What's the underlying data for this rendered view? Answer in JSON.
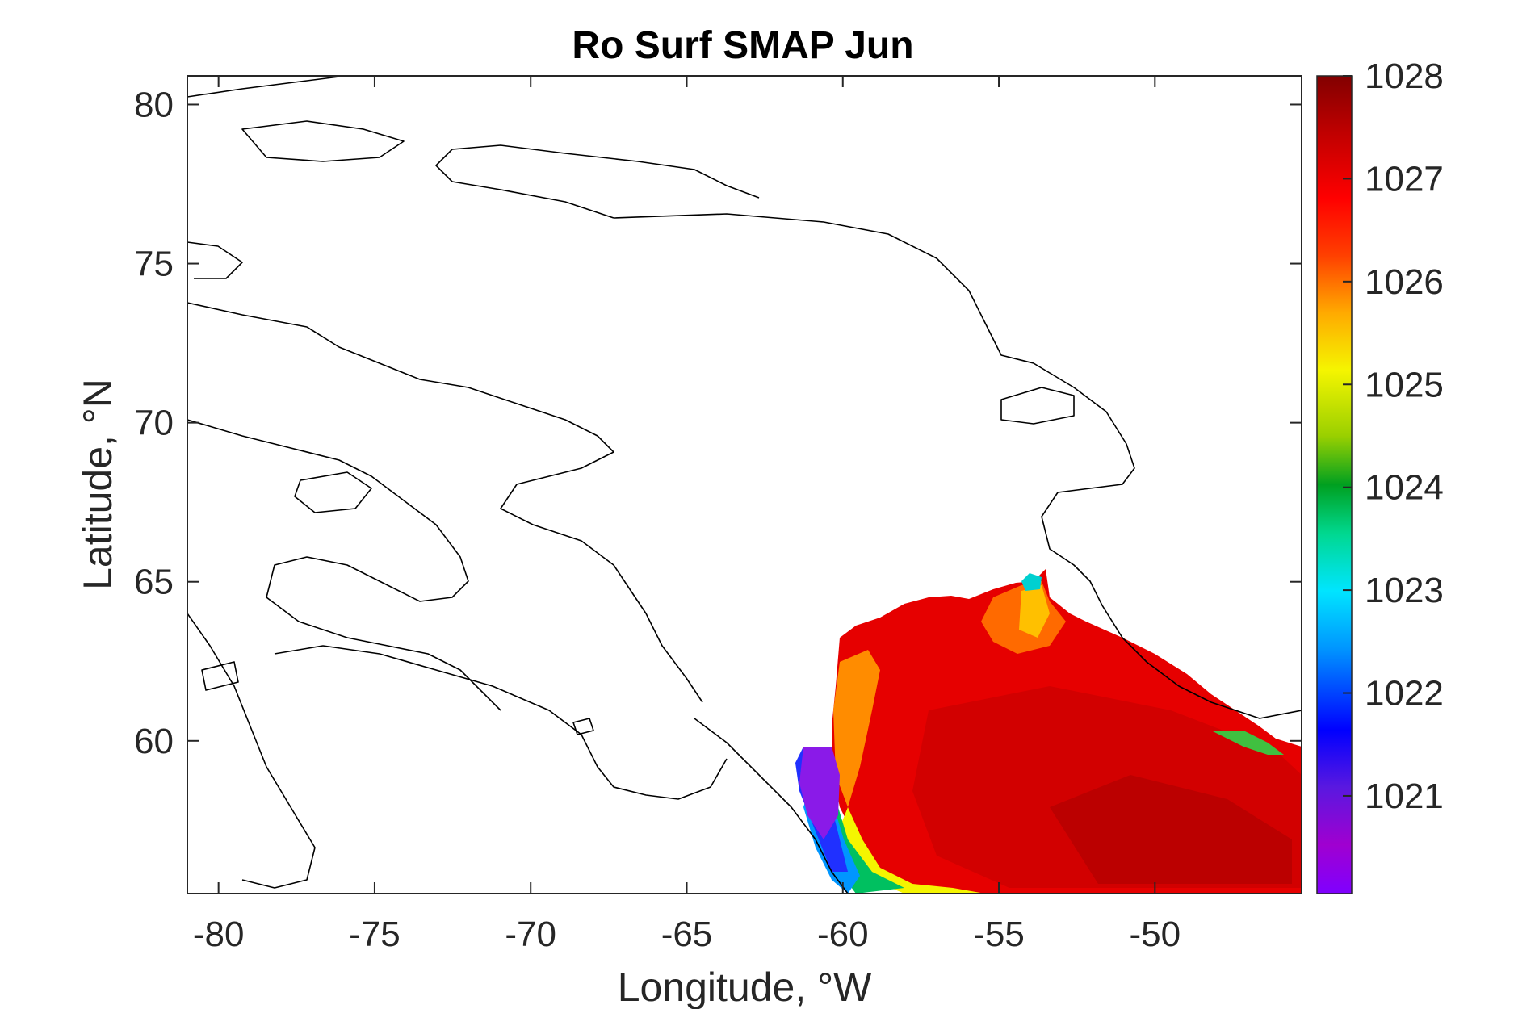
{
  "map": {
    "title": "Ro Surf SMAP Jun",
    "xlabel": "Longitude, °W",
    "ylabel": "Latitude, °N",
    "x_ticks": [
      "-80",
      "-75",
      "-70",
      "-65",
      "-60",
      "-55",
      "-50"
    ],
    "y_ticks": [
      "80",
      "75",
      "70",
      "65",
      "60"
    ],
    "x_tick_values": [
      -80,
      -75,
      -70,
      -65,
      -60,
      -55,
      -50
    ],
    "y_tick_values": [
      80,
      75,
      70,
      65,
      60
    ],
    "xlim": [
      -81,
      -45.3
    ],
    "ylim": [
      55.2,
      80.9
    ],
    "colorbar": {
      "tick_labels": [
        "1028",
        "1027",
        "1026",
        "1025",
        "1024",
        "1023",
        "1022",
        "1021"
      ],
      "tick_values": [
        1028,
        1027,
        1026,
        1025,
        1024,
        1023,
        1022,
        1021
      ],
      "range": [
        1020.05,
        1028.0
      ],
      "colormap": [
        "#7f00ff",
        "#a000d0",
        "#5a18e0",
        "#0000ff",
        "#0096ff",
        "#00e5ff",
        "#00d890",
        "#00a020",
        "#9ad000",
        "#f5f500",
        "#ffaa00",
        "#ff4000",
        "#ff0000",
        "#c00000",
        "#820000"
      ]
    },
    "field": "sea surface density (SMAP), June",
    "colors": {
      "land_fill": "#ffffff",
      "coastline": "#000000",
      "axes": "#262626"
    }
  }
}
